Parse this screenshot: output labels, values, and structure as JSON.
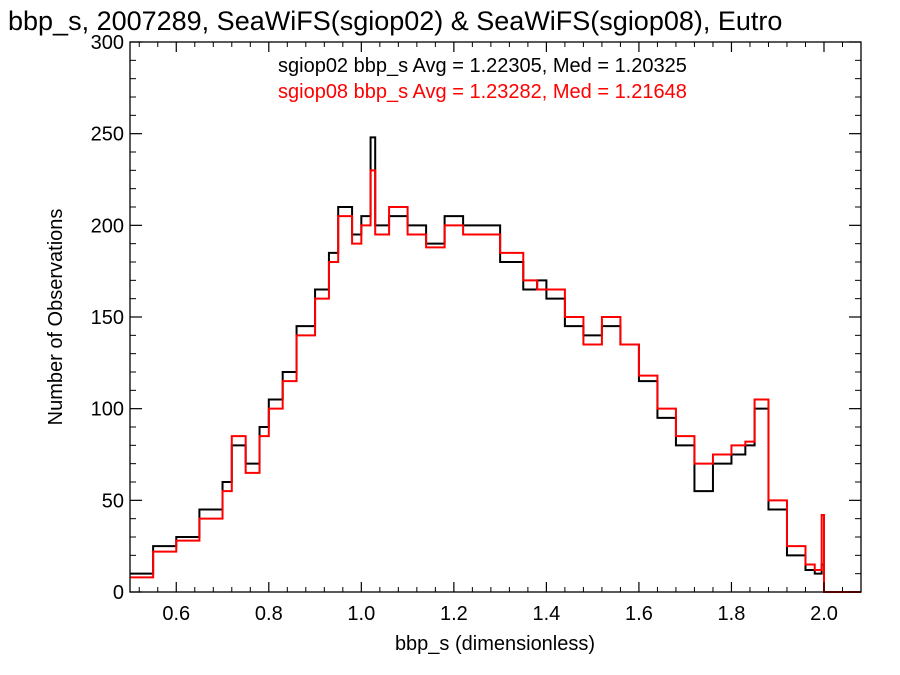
{
  "chart_data": {
    "type": "line",
    "step": true,
    "title": "bbp_s, 2007289, SeaWiFS(sgiop02) & SeaWiFS(sgiop08), Eutro",
    "xlabel": "bbp_s (dimensionless)",
    "ylabel": "Number of Observations",
    "xlim": [
      0.5,
      2.08
    ],
    "ylim": [
      0,
      300
    ],
    "xticks": [
      0.6,
      0.8,
      1.0,
      1.2,
      1.4,
      1.6,
      1.8,
      2.0
    ],
    "xtick_labels": [
      "0.6",
      "0.8",
      "1.0",
      "1.2",
      "1.4",
      "1.6",
      "1.8",
      "2.0"
    ],
    "yticks": [
      0,
      50,
      100,
      150,
      200,
      250,
      300
    ],
    "ytick_labels": [
      "0",
      "50",
      "100",
      "150",
      "200",
      "250",
      "300"
    ],
    "grid": false,
    "annotations": [
      {
        "text": "sgiop02 bbp_s Avg = 1.22305, Med = 1.20325",
        "color": "#000000"
      },
      {
        "text": "sgiop08 bbp_s Avg = 1.23282, Med = 1.21648",
        "color": "#ff0000"
      }
    ],
    "series": [
      {
        "color": "#000000",
        "x": [
          0.5,
          0.55,
          0.6,
          0.65,
          0.7,
          0.72,
          0.75,
          0.78,
          0.8,
          0.83,
          0.86,
          0.9,
          0.93,
          0.95,
          0.98,
          1.0,
          1.02,
          1.03,
          1.06,
          1.1,
          1.14,
          1.18,
          1.22,
          1.26,
          1.3,
          1.35,
          1.38,
          1.4,
          1.44,
          1.48,
          1.52,
          1.56,
          1.6,
          1.64,
          1.68,
          1.72,
          1.76,
          1.8,
          1.83,
          1.85,
          1.88,
          1.92,
          1.96,
          1.98,
          1.995,
          2.0,
          2.08
        ],
        "y": [
          10,
          25,
          30,
          45,
          60,
          80,
          70,
          90,
          105,
          120,
          145,
          165,
          185,
          210,
          195,
          205,
          248,
          200,
          205,
          200,
          190,
          205,
          200,
          200,
          180,
          165,
          170,
          160,
          145,
          140,
          145,
          135,
          115,
          95,
          80,
          55,
          70,
          75,
          80,
          100,
          45,
          20,
          12,
          10,
          15,
          0,
          0
        ]
      },
      {
        "color": "#ff0000",
        "x": [
          0.5,
          0.55,
          0.6,
          0.65,
          0.7,
          0.72,
          0.75,
          0.78,
          0.8,
          0.83,
          0.86,
          0.9,
          0.93,
          0.95,
          0.98,
          1.0,
          1.02,
          1.03,
          1.06,
          1.1,
          1.14,
          1.18,
          1.22,
          1.26,
          1.3,
          1.35,
          1.38,
          1.4,
          1.44,
          1.48,
          1.52,
          1.56,
          1.6,
          1.64,
          1.68,
          1.72,
          1.76,
          1.8,
          1.83,
          1.85,
          1.88,
          1.92,
          1.96,
          1.98,
          1.995,
          2.0,
          2.08
        ],
        "y": [
          8,
          22,
          28,
          40,
          55,
          85,
          65,
          85,
          100,
          115,
          140,
          160,
          180,
          205,
          190,
          200,
          230,
          195,
          210,
          195,
          188,
          200,
          195,
          195,
          185,
          170,
          165,
          165,
          150,
          135,
          150,
          135,
          118,
          100,
          85,
          70,
          75,
          80,
          82,
          105,
          50,
          25,
          15,
          12,
          42,
          0,
          0
        ]
      }
    ]
  }
}
